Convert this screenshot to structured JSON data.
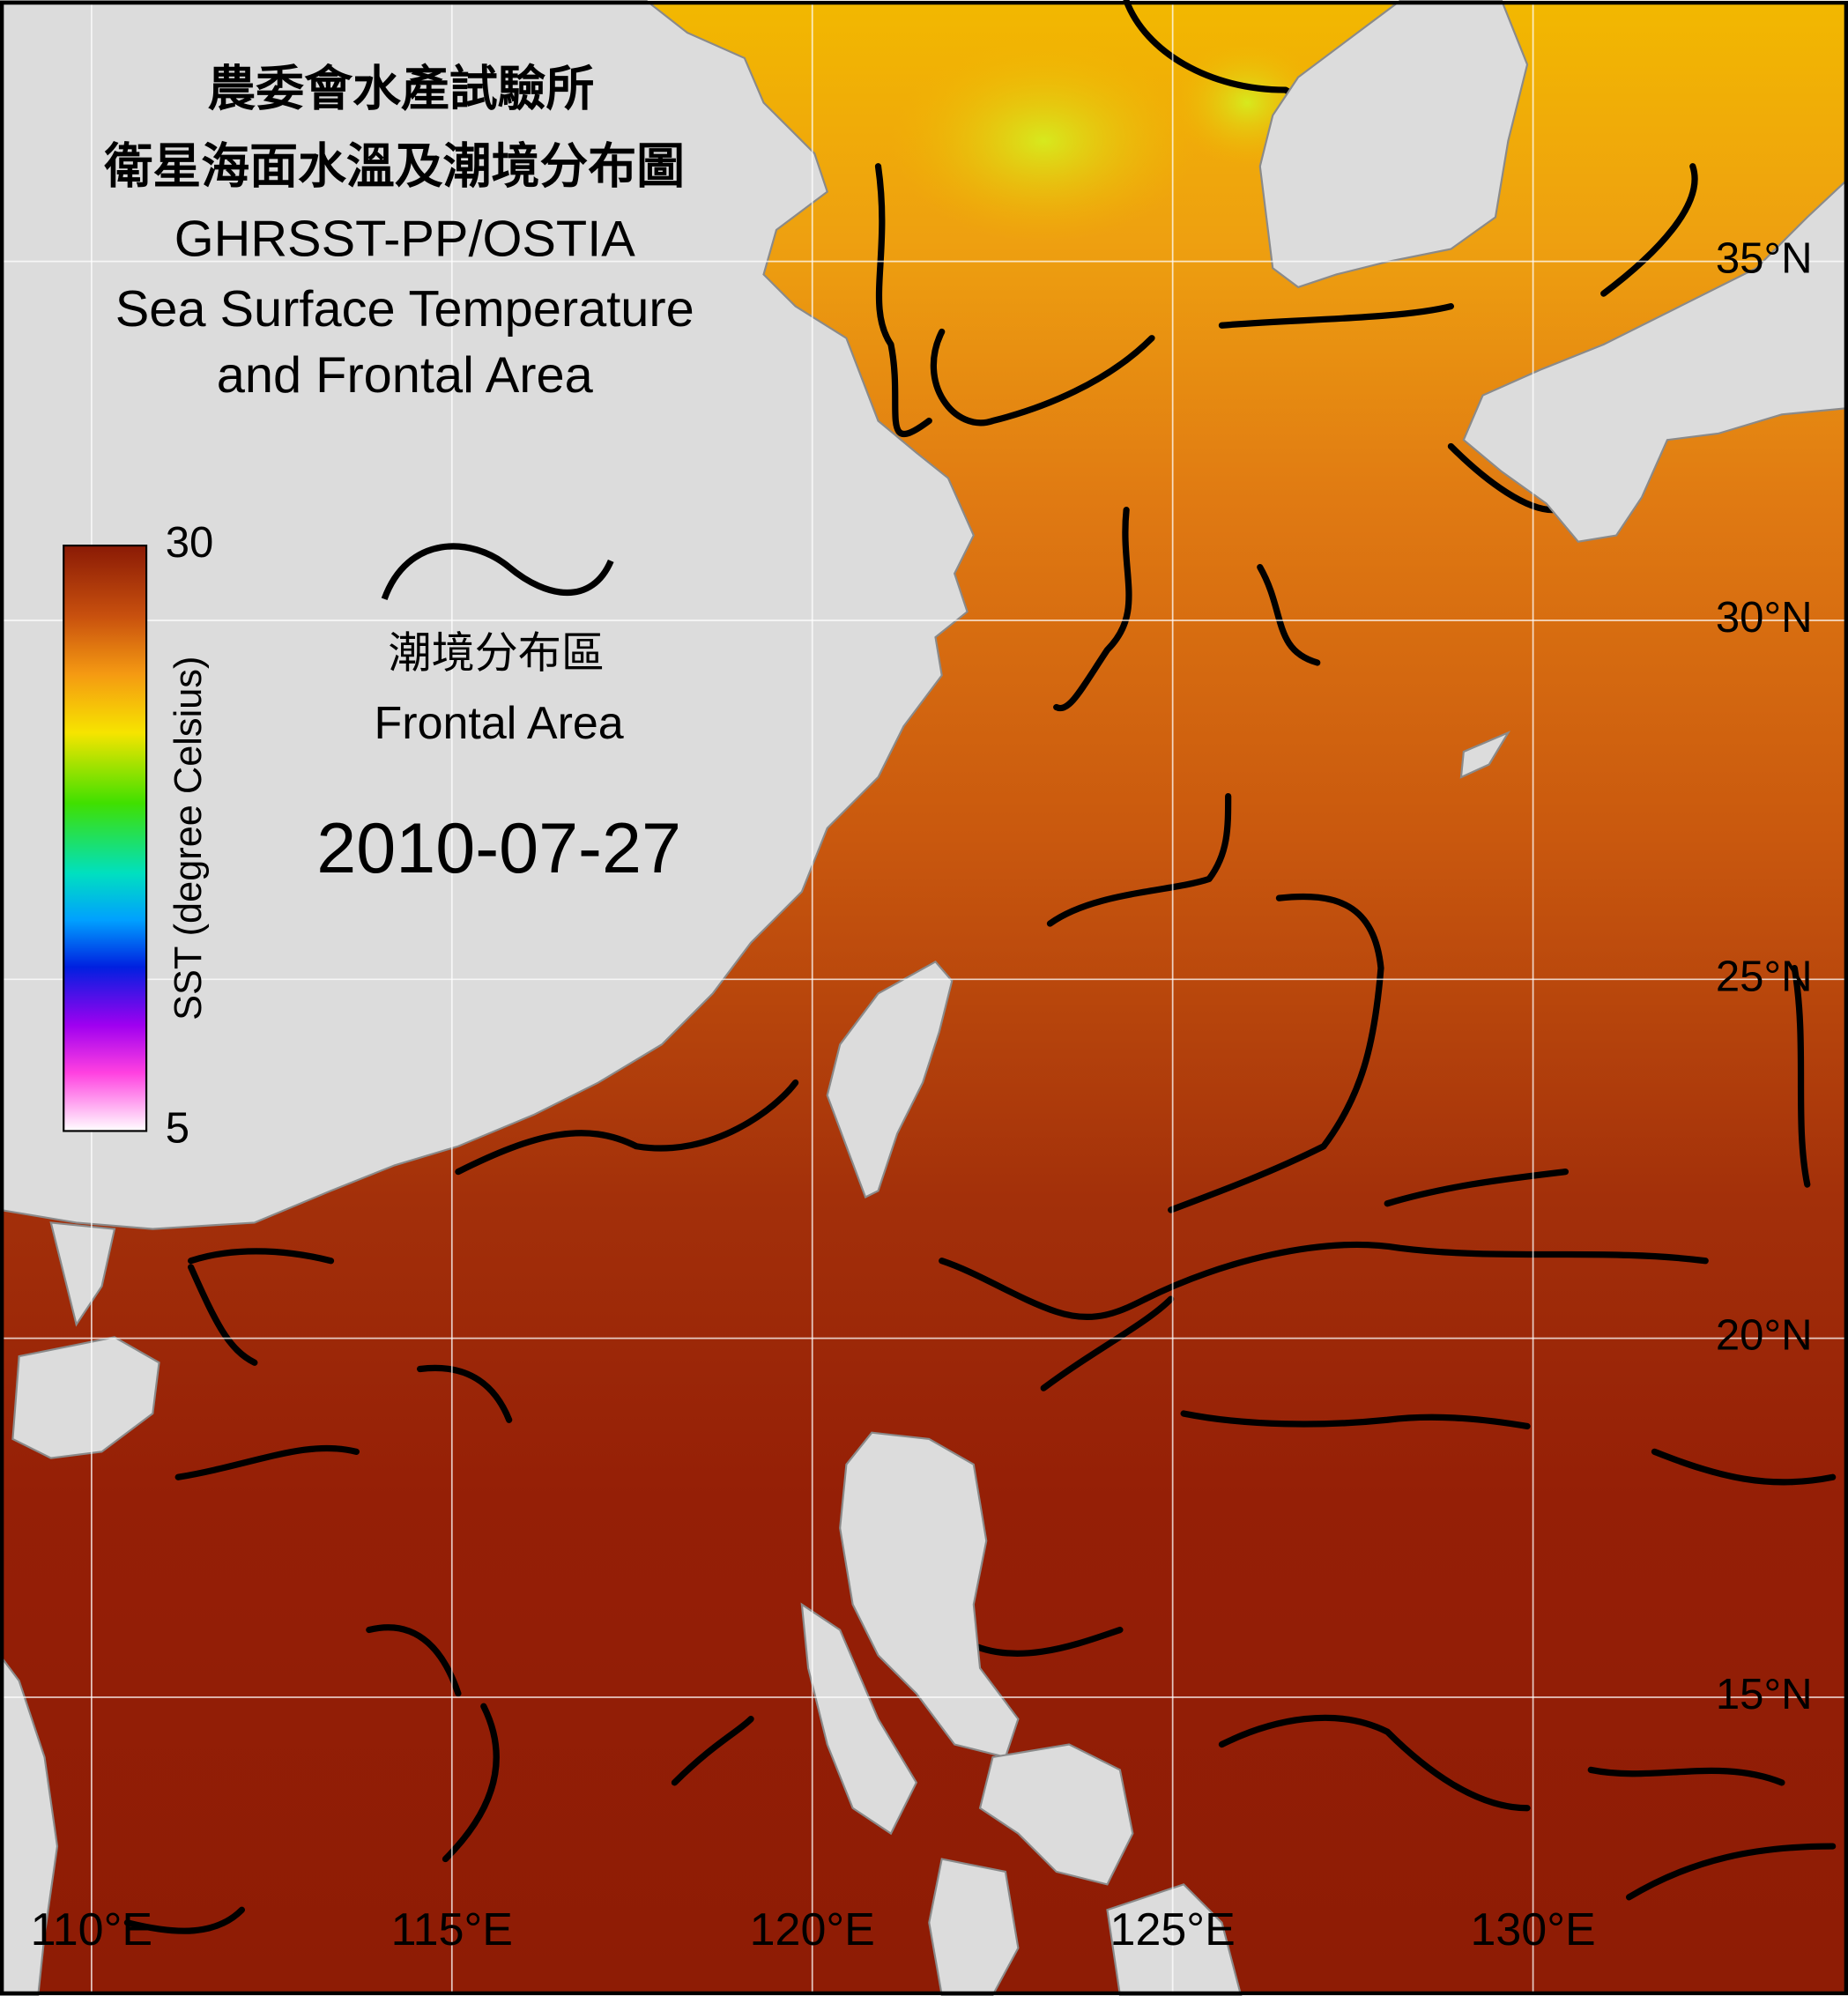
{
  "title_zh": [
    "農委會水產試驗所",
    "衛星海面水溫及潮境分布圖"
  ],
  "title_en": [
    "GHRSST-PP/OSTIA",
    "Sea Surface Temperature",
    "and Frontal Area"
  ],
  "colorbar": {
    "label": "SST (degree Celsius)",
    "range": [
      5,
      30
    ],
    "ticks": [
      5,
      30
    ]
  },
  "legend": {
    "zh": "潮境分布區",
    "en": "Frontal Area"
  },
  "date": "2010-07-27",
  "map": {
    "xlim": [
      108.73,
      134.37
    ],
    "ylim": [
      10.85,
      38.63
    ],
    "lon_ticks": [
      {
        "value": 110,
        "label": "110°E"
      },
      {
        "value": 115,
        "label": "115°E"
      },
      {
        "value": 120,
        "label": "120°E"
      },
      {
        "value": 125,
        "label": "125°E"
      },
      {
        "value": 130,
        "label": "130°E"
      }
    ],
    "lat_ticks": [
      {
        "value": 35,
        "label": "35°N"
      },
      {
        "value": 30,
        "label": "30°N"
      },
      {
        "value": 25,
        "label": "25°N"
      },
      {
        "value": 20,
        "label": "20°N"
      },
      {
        "value": 15,
        "label": "15°N"
      }
    ]
  }
}
